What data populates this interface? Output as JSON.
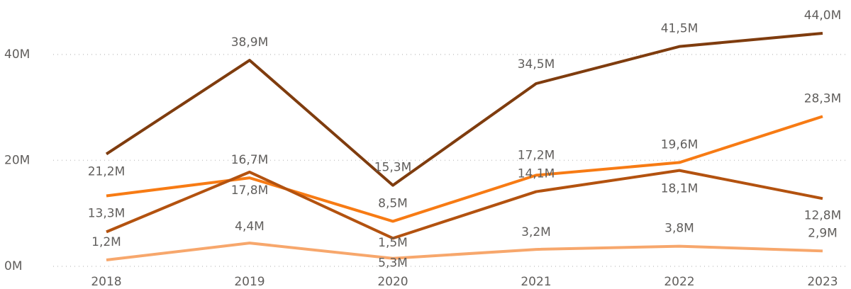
{
  "chart_data": {
    "type": "line",
    "categories": [
      "2018",
      "2019",
      "2020",
      "2021",
      "2022",
      "2023"
    ],
    "series": [
      {
        "color": "#7f3c0e",
        "values": [
          21.2,
          38.9,
          15.3,
          34.5,
          41.5,
          44.0
        ],
        "value_labels": [
          "21,2M",
          "38,9M",
          "15,3M",
          "34,5M",
          "41,5M",
          "44,0M"
        ]
      },
      {
        "color": "#f77b14",
        "values": [
          13.3,
          16.7,
          8.5,
          17.2,
          19.6,
          28.3
        ],
        "value_labels": [
          "13,3M",
          "16,7M",
          "8,5M",
          "17,2M",
          "19,6M",
          "28,3M"
        ]
      },
      {
        "color": "#b3520f",
        "values": [
          6.5,
          17.8,
          5.3,
          14.1,
          18.1,
          12.8
        ],
        "value_labels": [
          null,
          "17,8M",
          "5,3M",
          "14,1M",
          "18,1M",
          "12,8M"
        ]
      },
      {
        "color": "#f7a76c",
        "values": [
          1.2,
          4.4,
          1.5,
          3.2,
          3.8,
          2.9
        ],
        "value_labels": [
          "1,2M",
          "4,4M",
          "1,5M",
          "3,2M",
          "3,8M",
          "2,9M"
        ]
      }
    ],
    "ylim": [
      0,
      46
    ],
    "yticks": [
      {
        "value": 0,
        "label": "0M"
      },
      {
        "value": 20,
        "label": "20M"
      },
      {
        "value": 40,
        "label": "40M"
      }
    ],
    "grid": true
  }
}
